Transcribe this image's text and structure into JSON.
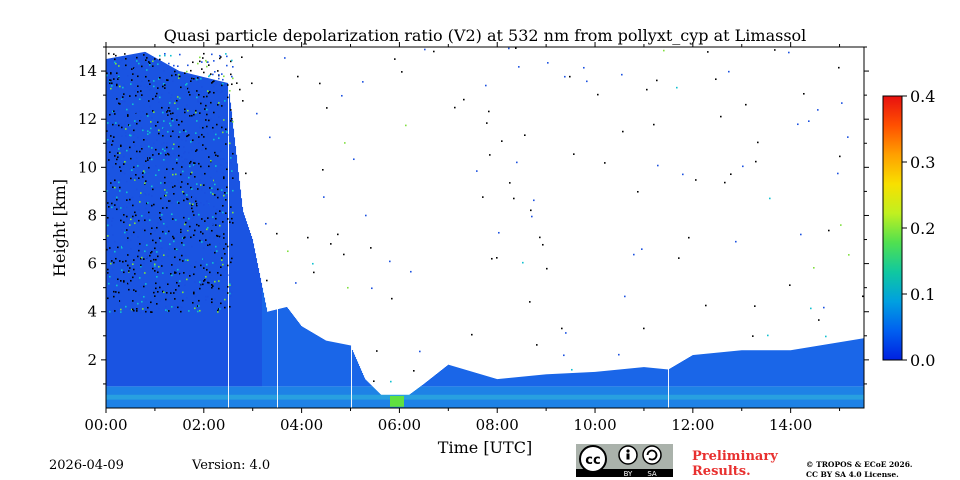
{
  "chart_data": {
    "type": "heatmap",
    "title": "Quasi particle depolarization ratio (V2) at 532 nm from pollyxt_cyp at Limassol",
    "xlabel": "Time [UTC]",
    "ylabel": "Height [km]",
    "xlim_hours": [
      0,
      15.5
    ],
    "ylim_km": [
      0,
      15
    ],
    "x_ticks": [
      {
        "hour": 0,
        "label": "00:00"
      },
      {
        "hour": 2,
        "label": "02:00"
      },
      {
        "hour": 4,
        "label": "04:00"
      },
      {
        "hour": 6,
        "label": "06:00"
      },
      {
        "hour": 8,
        "label": "08:00"
      },
      {
        "hour": 10,
        "label": "10:00"
      },
      {
        "hour": 12,
        "label": "12:00"
      },
      {
        "hour": 14,
        "label": "14:00"
      }
    ],
    "y_ticks": [
      {
        "km": 2,
        "label": "2"
      },
      {
        "km": 4,
        "label": "4"
      },
      {
        "km": 6,
        "label": "6"
      },
      {
        "km": 8,
        "label": "8"
      },
      {
        "km": 10,
        "label": "10"
      },
      {
        "km": 12,
        "label": "12"
      },
      {
        "km": 14,
        "label": "14"
      }
    ],
    "colorbar": {
      "range": [
        0,
        0.4
      ],
      "ticks": [
        {
          "value": 0.0,
          "label": "0.0"
        },
        {
          "value": 0.1,
          "label": "0.1"
        },
        {
          "value": 0.2,
          "label": "0.2"
        },
        {
          "value": 0.3,
          "label": "0.3"
        },
        {
          "value": 0.4,
          "label": "0.4"
        }
      ],
      "colors": [
        "#0020e0",
        "#0060f0",
        "#00a0e0",
        "#10c8a0",
        "#50e050",
        "#c0f020",
        "#f8e000",
        "#ffa000",
        "#ff5000",
        "#e81010"
      ]
    },
    "signal_top_km": [
      {
        "hour": 0.0,
        "km": 14.5
      },
      {
        "hour": 0.8,
        "km": 14.8
      },
      {
        "hour": 1.5,
        "km": 14.0
      },
      {
        "hour": 2.5,
        "km": 13.5
      },
      {
        "hour": 2.8,
        "km": 8.2
      },
      {
        "hour": 3.0,
        "km": 7.0
      },
      {
        "hour": 3.3,
        "km": 4.0
      },
      {
        "hour": 3.7,
        "km": 4.2
      },
      {
        "hour": 4.0,
        "km": 3.4
      },
      {
        "hour": 4.5,
        "km": 2.8
      },
      {
        "hour": 5.0,
        "km": 2.6
      },
      {
        "hour": 5.3,
        "km": 1.2
      },
      {
        "hour": 5.7,
        "km": 0.4
      },
      {
        "hour": 6.1,
        "km": 0.4
      },
      {
        "hour": 6.5,
        "km": 1.0
      },
      {
        "hour": 7.0,
        "km": 1.8
      },
      {
        "hour": 8.0,
        "km": 1.2
      },
      {
        "hour": 9.0,
        "km": 1.4
      },
      {
        "hour": 10.0,
        "km": 1.5
      },
      {
        "hour": 11.0,
        "km": 1.7
      },
      {
        "hour": 11.5,
        "km": 1.6
      },
      {
        "hour": 12.0,
        "km": 2.2
      },
      {
        "hour": 13.0,
        "km": 2.4
      },
      {
        "hour": 14.0,
        "km": 2.4
      },
      {
        "hour": 15.5,
        "km": 2.9
      }
    ],
    "data_gaps_hour": [
      2.5,
      3.5,
      5.0,
      11.5
    ],
    "typical_depol_range": [
      0.0,
      0.08
    ],
    "elevated_depol_near_surface": {
      "hour_start": 5.8,
      "hour_end": 6.1,
      "value": 0.2
    }
  },
  "footer": {
    "date": "2026-04-09",
    "version_label": "Version:",
    "version_value": "4.0",
    "license_badge": {
      "cc": "cc",
      "by": "BY",
      "sa": "SA"
    },
    "preliminary_line1": "Preliminary",
    "preliminary_line2": "Results.",
    "copyright_line1": "© TROPOS & ECoE 2026.",
    "copyright_line2": "CC BY SA 4.0 License."
  }
}
